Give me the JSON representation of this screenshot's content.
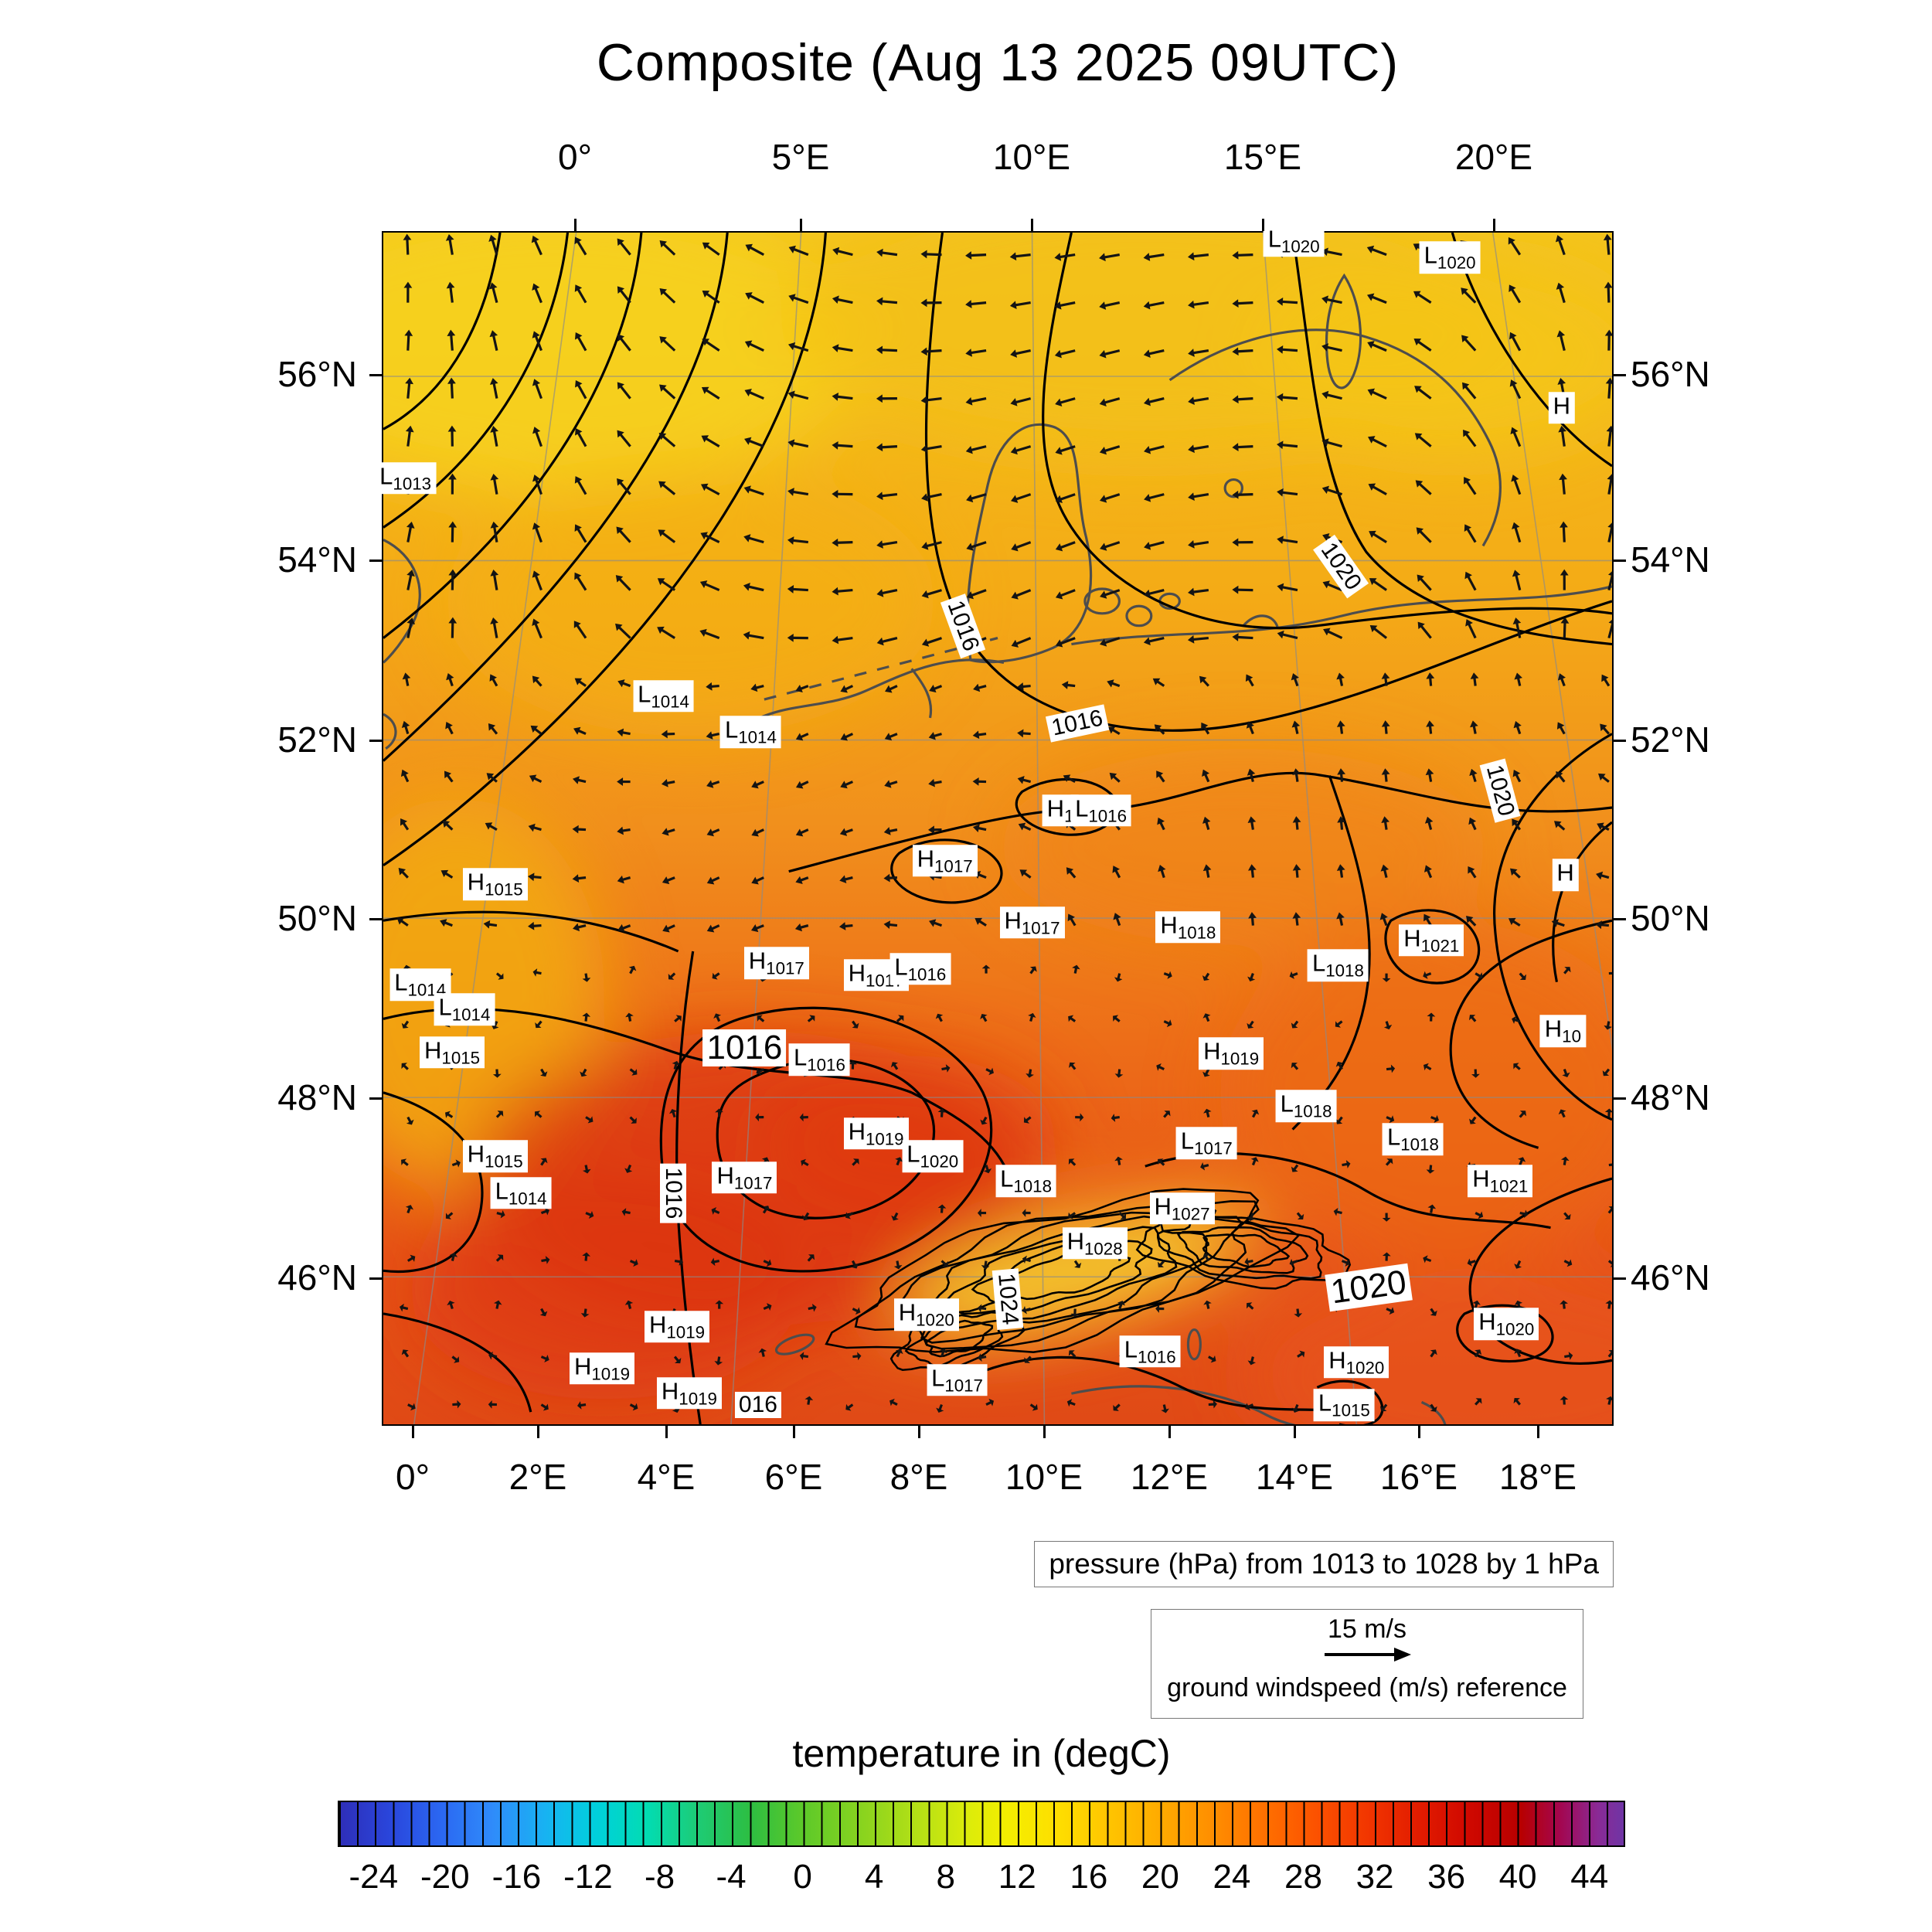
{
  "title": "Composite (Aug 13 2025 09UTC)",
  "axes": {
    "top": [
      "0°",
      "5°E",
      "10°E",
      "15°E",
      "20°E"
    ],
    "bottom": [
      "0°",
      "2°E",
      "4°E",
      "6°E",
      "8°E",
      "10°E",
      "12°E",
      "14°E",
      "16°E",
      "18°E"
    ],
    "left": [
      "56°N",
      "54°N",
      "52°N",
      "50°N",
      "48°N",
      "46°N"
    ],
    "right": [
      "56°N",
      "54°N",
      "52°N",
      "50°N",
      "48°N",
      "46°N"
    ]
  },
  "pressure_caption": "pressure (hPa) from 1013 to 1028 by 1 hPa",
  "wind_legend": {
    "reference_label": "15 m/s",
    "caption": "ground windspeed (m/s) reference"
  },
  "colorbar": {
    "title": "temperature in (degC)",
    "tick_values": [
      -24,
      -20,
      -16,
      -12,
      -8,
      -4,
      0,
      4,
      8,
      12,
      16,
      20,
      24,
      28,
      32,
      36,
      40,
      44
    ],
    "value_min": -26,
    "value_max": 46,
    "colors": [
      {
        "p": 0,
        "c": "#2e2eb8"
      },
      {
        "p": 4,
        "c": "#2a46dc"
      },
      {
        "p": 8,
        "c": "#2b68f2"
      },
      {
        "p": 12,
        "c": "#2f8cfa"
      },
      {
        "p": 16,
        "c": "#18b2f2"
      },
      {
        "p": 20,
        "c": "#00d0dc"
      },
      {
        "p": 24,
        "c": "#02dcb2"
      },
      {
        "p": 28,
        "c": "#1ecb74"
      },
      {
        "p": 32,
        "c": "#2dbe42"
      },
      {
        "p": 36,
        "c": "#5cc92a"
      },
      {
        "p": 41,
        "c": "#8cd41e"
      },
      {
        "p": 45,
        "c": "#b4e016"
      },
      {
        "p": 49,
        "c": "#dcec0a"
      },
      {
        "p": 52,
        "c": "#f4ee00"
      },
      {
        "p": 56,
        "c": "#fede00"
      },
      {
        "p": 60,
        "c": "#ffc400"
      },
      {
        "p": 64,
        "c": "#ffaa00"
      },
      {
        "p": 68,
        "c": "#ff8e00"
      },
      {
        "p": 72,
        "c": "#ff7000"
      },
      {
        "p": 76,
        "c": "#fc5200"
      },
      {
        "p": 80,
        "c": "#f23600"
      },
      {
        "p": 84,
        "c": "#e21c00"
      },
      {
        "p": 88,
        "c": "#cf0800"
      },
      {
        "p": 92,
        "c": "#b80000"
      },
      {
        "p": 95,
        "c": "#a4064e"
      },
      {
        "p": 98,
        "c": "#8a2a96"
      },
      {
        "p": 100,
        "c": "#6f35a5"
      }
    ]
  },
  "chart_data": {
    "type": "heatmap",
    "title": "Composite (Aug 13 2025 09UTC)",
    "fields": [
      "2m temperature (degC, color shading)",
      "surface pressure (hPa, black contours)",
      "ground wind (m/s, vectors)"
    ],
    "region": {
      "lon_top": [
        "0°",
        "20°E"
      ],
      "lon_bottom": [
        "0°",
        "18°E"
      ],
      "lat": [
        "46°N",
        "56°N"
      ]
    },
    "pressure_contours_hpa": {
      "min": 1013,
      "max": 1028,
      "interval": 1
    },
    "wind_reference_ms": 15,
    "temperature_scale_degc": {
      "min": -24,
      "max": 44,
      "step": 4
    },
    "legend_position": "bottom",
    "pressure_centers": [
      {
        "t": "L",
        "v": "1020",
        "x": 74.1,
        "y": 0.7
      },
      {
        "t": "L",
        "v": "1020",
        "x": 86.8,
        "y": 2.1
      },
      {
        "t": "L",
        "v": "1013",
        "x": 1.8,
        "y": 20.6
      },
      {
        "t": "H",
        "v": "",
        "x": 95.9,
        "y": 14.7
      },
      {
        "t": "L",
        "v": "1014",
        "x": 22.8,
        "y": 38.9
      },
      {
        "t": "L",
        "v": "1014",
        "x": 29.9,
        "y": 41.9
      },
      {
        "t": "H",
        "v": "1",
        "x": 55.1,
        "y": 48.5
      },
      {
        "t": "L",
        "v": "1016",
        "x": 58.4,
        "y": 48.5
      },
      {
        "t": "H",
        "v": "1017",
        "x": 45.7,
        "y": 52.7
      },
      {
        "t": "H",
        "v": "1015",
        "x": 9.1,
        "y": 54.7
      },
      {
        "t": "H",
        "v": "1017",
        "x": 52.8,
        "y": 57.9
      },
      {
        "t": "H",
        "v": "1018",
        "x": 65.5,
        "y": 58.3
      },
      {
        "t": "H",
        "v": "1021",
        "x": 85.3,
        "y": 59.4
      },
      {
        "t": "L",
        "v": "1018",
        "x": 77.7,
        "y": 61.5
      },
      {
        "t": "H",
        "v": "",
        "x": 96.2,
        "y": 53.9
      },
      {
        "t": "L",
        "v": "1014",
        "x": 3.0,
        "y": 63.1
      },
      {
        "t": "L",
        "v": "1014",
        "x": 6.6,
        "y": 65.2
      },
      {
        "t": "H",
        "v": "1017",
        "x": 32.0,
        "y": 61.3
      },
      {
        "t": "H",
        "v": "1017",
        "x": 40.1,
        "y": 62.3
      },
      {
        "t": "L",
        "v": "1016",
        "x": 43.7,
        "y": 61.8
      },
      {
        "t": "H",
        "v": "10",
        "x": 96.0,
        "y": 67.0
      },
      {
        "t": "H",
        "v": "1015",
        "x": 5.6,
        "y": 68.8
      },
      {
        "t": "L",
        "v": "1016",
        "x": 35.5,
        "y": 69.4
      },
      {
        "t": "H",
        "v": "1019",
        "x": 69.0,
        "y": 68.9
      },
      {
        "t": "L",
        "v": "1018",
        "x": 75.1,
        "y": 73.3
      },
      {
        "t": "L",
        "v": "1017",
        "x": 67.0,
        "y": 76.4
      },
      {
        "t": "L",
        "v": "1018",
        "x": 83.8,
        "y": 76.1
      },
      {
        "t": "H",
        "v": "1015",
        "x": 9.1,
        "y": 77.5
      },
      {
        "t": "L",
        "v": "1014",
        "x": 11.2,
        "y": 80.6
      },
      {
        "t": "H",
        "v": "1019",
        "x": 40.1,
        "y": 75.6
      },
      {
        "t": "L",
        "v": "1020",
        "x": 44.7,
        "y": 77.5
      },
      {
        "t": "L",
        "v": "1018",
        "x": 52.3,
        "y": 79.6
      },
      {
        "t": "H",
        "v": "1017",
        "x": 29.4,
        "y": 79.3
      },
      {
        "t": "H",
        "v": "1027",
        "x": 65.0,
        "y": 81.9
      },
      {
        "t": "H",
        "v": "1028",
        "x": 57.9,
        "y": 84.8
      },
      {
        "t": "H",
        "v": "1021",
        "x": 90.9,
        "y": 79.6
      },
      {
        "t": "H",
        "v": "1020",
        "x": 91.4,
        "y": 91.6
      },
      {
        "t": "H",
        "v": "1020",
        "x": 44.2,
        "y": 90.8
      },
      {
        "t": "H",
        "v": "1019",
        "x": 23.9,
        "y": 91.8
      },
      {
        "t": "H",
        "v": "1019",
        "x": 17.8,
        "y": 95.3
      },
      {
        "t": "H",
        "v": "1019",
        "x": 24.9,
        "y": 97.4
      },
      {
        "t": "L",
        "v": "1017",
        "x": 46.7,
        "y": 96.3
      },
      {
        "t": "L",
        "v": "1016",
        "x": 62.4,
        "y": 93.9
      },
      {
        "t": "H",
        "v": "1020",
        "x": 79.2,
        "y": 94.8
      },
      {
        "t": "L",
        "v": "1015",
        "x": 78.2,
        "y": 98.4
      }
    ],
    "contour_labels": [
      {
        "v": "1016",
        "x": 47.2,
        "y": 33.0,
        "r": 70,
        "big": false
      },
      {
        "v": "1016",
        "x": 56.5,
        "y": 41.2,
        "r": -12,
        "big": false
      },
      {
        "v": "1020",
        "x": 77.9,
        "y": 28.0,
        "r": 55,
        "big": false
      },
      {
        "v": "1020",
        "x": 90.9,
        "y": 46.8,
        "r": 75,
        "big": false
      },
      {
        "v": "1016",
        "x": 29.4,
        "y": 68.4,
        "r": 0,
        "big": true
      },
      {
        "v": "1016",
        "x": 23.6,
        "y": 80.6,
        "r": 90,
        "big": false
      },
      {
        "v": "1024",
        "x": 50.8,
        "y": 89.5,
        "r": 85,
        "big": false
      },
      {
        "v": "1020",
        "x": 80.2,
        "y": 88.5,
        "r": -8,
        "big": true
      },
      {
        "v": "016",
        "x": 30.5,
        "y": 98.4,
        "r": 0,
        "big": false
      }
    ]
  }
}
